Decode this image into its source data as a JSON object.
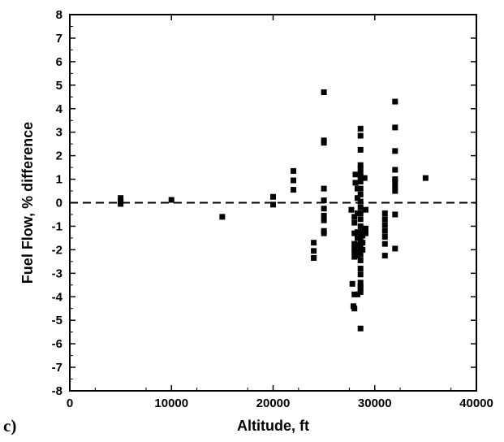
{
  "panel_label": "c)",
  "chart_data": {
    "type": "scatter",
    "xlabel": "Altitude, ft",
    "ylabel": "Fuel Flow, % difference",
    "xlim": [
      0,
      40000
    ],
    "ylim": [
      -8,
      8
    ],
    "x_ticks": [
      0,
      10000,
      20000,
      30000,
      40000
    ],
    "y_ticks": [
      -8,
      -7,
      -6,
      -5,
      -4,
      -3,
      -2,
      -1,
      0,
      1,
      2,
      3,
      4,
      5,
      6,
      7,
      8
    ],
    "reference_line": {
      "y": 0,
      "style": "dashed"
    },
    "grid": false,
    "marker": "square",
    "color": "#000000",
    "points": [
      [
        5000,
        0.2
      ],
      [
        5000,
        0.05
      ],
      [
        5000,
        -0.05
      ],
      [
        10000,
        0.12
      ],
      [
        15000,
        -0.6
      ],
      [
        20000,
        0.25
      ],
      [
        20000,
        -0.08
      ],
      [
        22000,
        1.35
      ],
      [
        22000,
        0.95
      ],
      [
        22000,
        0.55
      ],
      [
        24000,
        -1.7
      ],
      [
        24000,
        -2.05
      ],
      [
        24000,
        -2.35
      ],
      [
        25000,
        4.7
      ],
      [
        25000,
        2.65
      ],
      [
        25000,
        2.55
      ],
      [
        25000,
        0.6
      ],
      [
        25000,
        0.1
      ],
      [
        25000,
        -0.25
      ],
      [
        25000,
        -0.55
      ],
      [
        25000,
        -0.75
      ],
      [
        25000,
        -1.2
      ],
      [
        25000,
        -1.3
      ],
      [
        27700,
        -0.3
      ],
      [
        27800,
        -3.45
      ],
      [
        27900,
        -4.4
      ],
      [
        28000,
        -4.5
      ],
      [
        28000,
        -3.9
      ],
      [
        28000,
        -2.3
      ],
      [
        28000,
        -2.1
      ],
      [
        28000,
        -1.95
      ],
      [
        28000,
        -1.75
      ],
      [
        28000,
        -1.3
      ],
      [
        28000,
        -0.85
      ],
      [
        28000,
        -0.6
      ],
      [
        28100,
        1.2
      ],
      [
        28100,
        0.85
      ],
      [
        28300,
        -1.25
      ],
      [
        28300,
        -1.5
      ],
      [
        28300,
        -1.8
      ],
      [
        28300,
        -2.05
      ],
      [
        28300,
        -2.25
      ],
      [
        28300,
        -0.45
      ],
      [
        28300,
        -3.9
      ],
      [
        28300,
        0.6
      ],
      [
        28300,
        0.2
      ],
      [
        28600,
        3.15
      ],
      [
        28600,
        2.85
      ],
      [
        28600,
        2.25
      ],
      [
        28600,
        1.6
      ],
      [
        28600,
        1.45
      ],
      [
        28600,
        1.25
      ],
      [
        28600,
        1.1
      ],
      [
        28600,
        0.9
      ],
      [
        28600,
        0.6
      ],
      [
        28600,
        0.35
      ],
      [
        28600,
        0.05
      ],
      [
        28600,
        -0.2
      ],
      [
        28600,
        -0.45
      ],
      [
        28600,
        -0.7
      ],
      [
        28600,
        -1.0
      ],
      [
        28600,
        -1.3
      ],
      [
        28600,
        -1.6
      ],
      [
        28600,
        -1.9
      ],
      [
        28600,
        -2.2
      ],
      [
        28600,
        -2.45
      ],
      [
        28600,
        -2.8
      ],
      [
        28600,
        -3.05
      ],
      [
        28600,
        -3.4
      ],
      [
        28600,
        -3.55
      ],
      [
        28600,
        -3.65
      ],
      [
        28600,
        -3.8
      ],
      [
        28600,
        -5.35
      ],
      [
        28800,
        -1.1
      ],
      [
        28800,
        -1.4
      ],
      [
        28800,
        -1.7
      ],
      [
        28800,
        -2.0
      ],
      [
        29000,
        1.05
      ],
      [
        29100,
        -0.3
      ],
      [
        29100,
        -1.1
      ],
      [
        29100,
        -1.3
      ],
      [
        31000,
        -0.45
      ],
      [
        31000,
        -0.7
      ],
      [
        31000,
        -0.95
      ],
      [
        31000,
        -1.2
      ],
      [
        31000,
        -1.45
      ],
      [
        31000,
        -1.75
      ],
      [
        31000,
        -2.25
      ],
      [
        32000,
        4.3
      ],
      [
        32000,
        3.2
      ],
      [
        32000,
        2.2
      ],
      [
        32000,
        1.4
      ],
      [
        32000,
        1.0
      ],
      [
        32000,
        0.9
      ],
      [
        32000,
        0.7
      ],
      [
        32000,
        0.5
      ],
      [
        32000,
        -0.5
      ],
      [
        32000,
        -1.95
      ],
      [
        35000,
        1.05
      ]
    ]
  }
}
